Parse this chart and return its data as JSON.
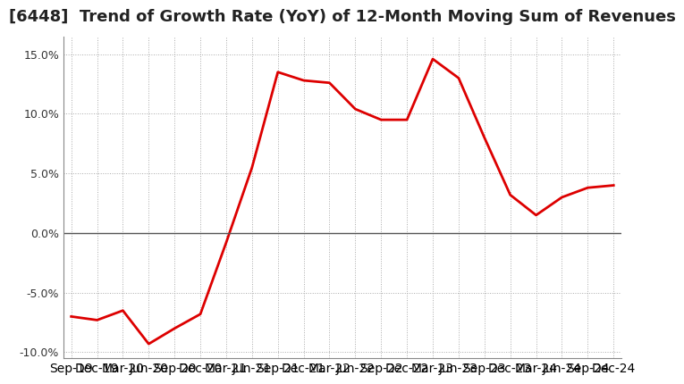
{
  "title": "[6448]  Trend of Growth Rate (YoY) of 12-Month Moving Sum of Revenues",
  "x_labels": [
    "Sep-19",
    "Dec-19",
    "Mar-20",
    "Jun-20",
    "Sep-20",
    "Dec-20",
    "Mar-21",
    "Jun-21",
    "Sep-21",
    "Dec-21",
    "Mar-22",
    "Jun-22",
    "Sep-22",
    "Dec-22",
    "Mar-23",
    "Jun-23",
    "Sep-23",
    "Dec-23",
    "Mar-24",
    "Jun-24",
    "Sep-24",
    "Dec-24"
  ],
  "y_values": [
    -7.0,
    -7.3,
    -6.5,
    -9.3,
    -8.0,
    -6.8,
    -0.8,
    5.5,
    13.5,
    12.8,
    12.6,
    10.4,
    9.5,
    9.5,
    14.6,
    13.0,
    8.0,
    3.2,
    1.5,
    3.0,
    3.8,
    4.0
  ],
  "ylim": [
    -10.5,
    16.5
  ],
  "yticks": [
    -10.0,
    -5.0,
    0.0,
    5.0,
    10.0,
    15.0
  ],
  "line_color": "#dd0000",
  "background_color": "#ffffff",
  "grid_color": "#aaaaaa",
  "spine_color": "#888888",
  "title_color": "#222222",
  "title_fontsize": 13,
  "tick_fontsize": 9,
  "xtick_fontsize": 8.5
}
